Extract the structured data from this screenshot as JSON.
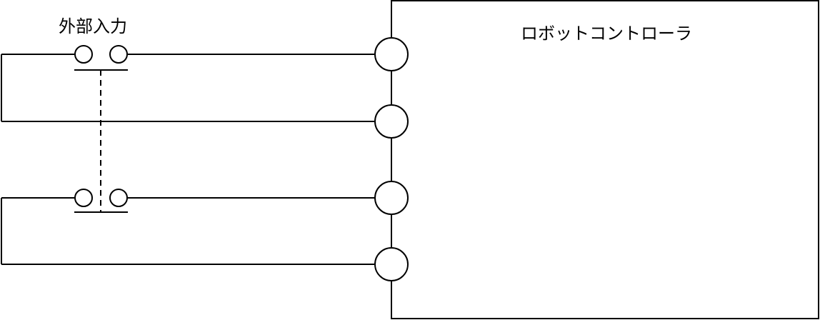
{
  "labels": {
    "external_input": "外部入力",
    "robot_controller": "ロボットコントローラ"
  },
  "colors": {
    "line": "#000000",
    "background": "#ffffff"
  }
}
